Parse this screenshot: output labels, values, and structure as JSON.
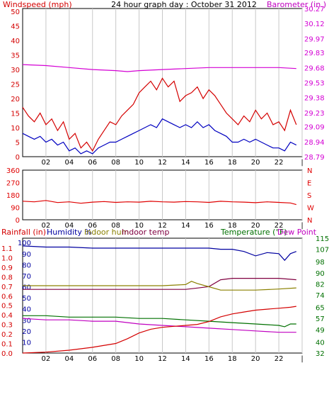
{
  "title": "24 hour graph day : October 31 2012",
  "colors": {
    "windspeed": "#d40000",
    "wind_avg": "#0000c0",
    "barometer": "#d400d4",
    "direction": "#e00000",
    "rainfall": "#d40000",
    "humidity": "#0000a0",
    "indoor_hum": "#8a8000",
    "indoor_temp": "#800040",
    "temperature": "#007000",
    "dew_point": "#c000c0",
    "grid": "#c8c8c8",
    "axis": "#000000"
  },
  "chart_data": [
    {
      "type": "line",
      "name": "wind-barometer",
      "x_ticks": [
        "02",
        "04",
        "06",
        "08",
        "10",
        "12",
        "14",
        "16",
        "18",
        "20",
        "22",
        "|"
      ],
      "left_label": "Windspeed (mph)",
      "right_label": "Barometer (in.)",
      "left_ticks": [
        0,
        5,
        10,
        15,
        20,
        25,
        30,
        35,
        40,
        45,
        50
      ],
      "right_ticks": [
        28.79,
        28.94,
        29.09,
        29.23,
        29.38,
        29.53,
        29.68,
        29.83,
        29.97,
        30.12,
        30.27
      ],
      "ylim_left": [
        0,
        51
      ],
      "ylim_right": [
        28.79,
        30.27
      ],
      "series": [
        {
          "key": "gust",
          "x": [
            0,
            0.5,
            1,
            1.5,
            2,
            2.5,
            3,
            3.5,
            4,
            4.5,
            5,
            5.5,
            6,
            6.5,
            7,
            7.5,
            8,
            8.5,
            9,
            9.5,
            10,
            10.5,
            11,
            11.5,
            12,
            12.5,
            13,
            13.5,
            14,
            14.5,
            15,
            15.5,
            16,
            16.5,
            17,
            17.5,
            18,
            18.5,
            19,
            19.5,
            20,
            20.5,
            21,
            21.5,
            22,
            22.5,
            23,
            23.5
          ],
          "y": [
            17,
            14,
            12,
            15,
            11,
            13,
            9,
            12,
            6,
            8,
            3,
            5,
            2,
            6,
            9,
            12,
            11,
            14,
            16,
            18,
            22,
            24,
            26,
            23,
            27,
            24,
            26,
            19,
            21,
            22,
            24,
            20,
            23,
            21,
            18,
            15,
            13,
            11,
            14,
            12,
            16,
            13,
            15,
            11,
            12,
            9,
            16,
            11
          ]
        },
        {
          "key": "average",
          "x": [
            0,
            0.5,
            1,
            1.5,
            2,
            2.5,
            3,
            3.5,
            4,
            4.5,
            5,
            5.5,
            6,
            6.5,
            7,
            7.5,
            8,
            8.5,
            9,
            9.5,
            10,
            10.5,
            11,
            11.5,
            12,
            12.5,
            13,
            13.5,
            14,
            14.5,
            15,
            15.5,
            16,
            16.5,
            17,
            17.5,
            18,
            18.5,
            19,
            19.5,
            20,
            20.5,
            21,
            21.5,
            22,
            22.5,
            23,
            23.5
          ],
          "y": [
            8,
            7,
            6,
            7,
            5,
            6,
            4,
            5,
            2,
            3,
            1,
            2,
            1,
            3,
            4,
            5,
            5,
            6,
            7,
            8,
            9,
            10,
            11,
            10,
            13,
            12,
            11,
            10,
            11,
            10,
            12,
            10,
            11,
            9,
            8,
            7,
            5,
            5,
            6,
            5,
            6,
            5,
            4,
            3,
            3,
            2,
            5,
            4
          ]
        },
        {
          "key": "barometer",
          "x": [
            0,
            2,
            4,
            6,
            8,
            9,
            10,
            12,
            14,
            16,
            18,
            20,
            22,
            23.5
          ],
          "y": [
            29.71,
            29.7,
            29.68,
            29.66,
            29.65,
            29.64,
            29.65,
            29.66,
            29.67,
            29.68,
            29.68,
            29.68,
            29.68,
            29.67
          ]
        }
      ]
    },
    {
      "type": "line",
      "name": "wind-direction",
      "x_ticks": [
        "02",
        "04",
        "06",
        "08",
        "10",
        "12",
        "14",
        "16",
        "18",
        "20",
        "22",
        "|"
      ],
      "left_ticks": [
        0,
        90,
        180,
        270,
        360
      ],
      "right_labels": [
        "N",
        "W",
        "S",
        "E",
        "N"
      ],
      "ylim": [
        0,
        360
      ],
      "series": [
        {
          "key": "direction",
          "x": [
            0,
            1,
            2,
            3,
            4,
            5,
            6,
            7,
            8,
            9,
            10,
            11,
            12,
            13,
            14,
            15,
            16,
            17,
            18,
            19,
            20,
            21,
            22,
            23,
            23.5
          ],
          "y": [
            135,
            130,
            140,
            125,
            130,
            120,
            128,
            132,
            126,
            130,
            128,
            134,
            130,
            128,
            132,
            130,
            126,
            134,
            130,
            128,
            124,
            130,
            126,
            122,
            110
          ]
        }
      ]
    },
    {
      "type": "line",
      "name": "rain-humidity-temperature",
      "x_ticks": [
        "02",
        "04",
        "06",
        "08",
        "10",
        "12",
        "14",
        "16",
        "18",
        "20",
        "22",
        "|"
      ],
      "header_labels": {
        "rainfall": "Rainfall (in)",
        "humidity": "Humidity %",
        "indoor_hum": "Indoor hum",
        "indoor_temp": "Indoor temp",
        "temperature": "Temperature (°F)",
        "dew_point": "Dew Point"
      },
      "rain_ticks": [
        "0.0",
        "0.1",
        "0.2",
        "0.3",
        "0.4",
        "0.5",
        "0.6",
        "0.7",
        "0.8",
        "0.9",
        "1.0",
        "1.1"
      ],
      "humidity_ticks": [
        10,
        20,
        30,
        40,
        50,
        60,
        70,
        80,
        90,
        100
      ],
      "temp_ticks": [
        32,
        40,
        49,
        57,
        65,
        74,
        82,
        90,
        98,
        107,
        115
      ],
      "ylim_humidity": [
        0,
        104
      ],
      "ylim_temp": [
        32,
        115
      ],
      "series": [
        {
          "key": "humidity",
          "x": [
            0,
            2,
            4,
            6,
            8,
            10,
            12,
            14,
            16,
            17,
            18,
            19,
            20,
            21,
            22,
            22.5,
            23,
            23.5
          ],
          "y": [
            97,
            96,
            96,
            95,
            95,
            95,
            95,
            95,
            95,
            94,
            94,
            92,
            88,
            91,
            90,
            84,
            90,
            92
          ]
        },
        {
          "key": "indoor_temp",
          "x": [
            0,
            2,
            4,
            6,
            8,
            10,
            12,
            14,
            15,
            16,
            17,
            18,
            20,
            22,
            23.5
          ],
          "y": [
            78,
            78,
            78,
            78,
            78,
            78,
            78,
            78,
            79,
            80,
            85,
            86,
            86,
            86,
            85
          ]
        },
        {
          "key": "indoor_hum",
          "x": [
            0,
            2,
            4,
            6,
            8,
            10,
            12,
            14,
            14.5,
            15,
            16,
            17,
            18,
            20,
            22,
            23.5
          ],
          "y": [
            61,
            61,
            61,
            61,
            61,
            61,
            61,
            62,
            65,
            63,
            60,
            57,
            57,
            57,
            58,
            59
          ]
        },
        {
          "key": "temperature",
          "x": [
            0,
            2,
            4,
            6,
            8,
            10,
            12,
            14,
            16,
            18,
            20,
            22,
            22.5,
            23,
            23.5
          ],
          "y": [
            59,
            59,
            58,
            58,
            58,
            57,
            57,
            56,
            55,
            54,
            53,
            52,
            51,
            53,
            53
          ]
        },
        {
          "key": "dew_point",
          "x": [
            0,
            2,
            4,
            6,
            8,
            10,
            12,
            14,
            16,
            18,
            20,
            22,
            23,
            23.5
          ],
          "y": [
            57,
            56,
            56,
            55,
            55,
            53,
            52,
            51,
            50,
            49,
            48,
            47,
            47,
            47
          ]
        },
        {
          "key": "rainfall",
          "x": [
            0,
            2,
            4,
            6,
            8,
            9,
            10,
            11,
            12,
            13,
            14,
            15,
            16,
            17,
            18,
            19,
            20,
            21,
            22,
            23,
            23.5
          ],
          "y": [
            0.0,
            0.01,
            0.03,
            0.06,
            0.1,
            0.15,
            0.21,
            0.25,
            0.27,
            0.28,
            0.29,
            0.3,
            0.33,
            0.38,
            0.41,
            0.43,
            0.45,
            0.46,
            0.47,
            0.48,
            0.49
          ]
        }
      ]
    }
  ]
}
